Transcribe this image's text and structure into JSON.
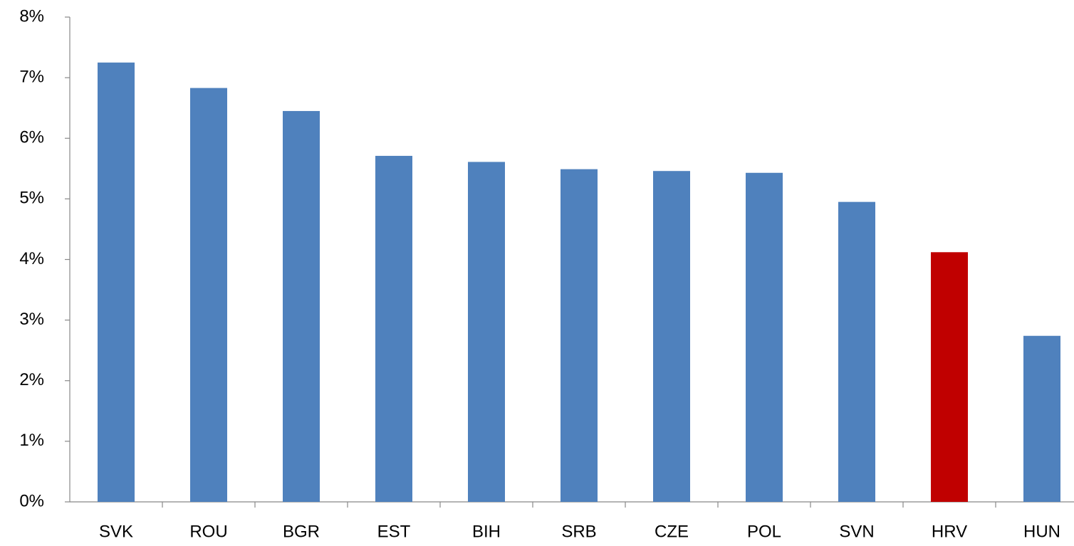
{
  "chart_data": {
    "type": "bar",
    "categories": [
      "SVK",
      "ROU",
      "BGR",
      "EST",
      "BIH",
      "SRB",
      "CZE",
      "POL",
      "SVN",
      "HRV",
      "HUN"
    ],
    "values": [
      7.25,
      6.83,
      6.45,
      5.71,
      5.61,
      5.49,
      5.46,
      5.43,
      4.95,
      4.12,
      2.74
    ],
    "colors": [
      "#4f81bd",
      "#4f81bd",
      "#4f81bd",
      "#4f81bd",
      "#4f81bd",
      "#4f81bd",
      "#4f81bd",
      "#4f81bd",
      "#4f81bd",
      "#c00000",
      "#4f81bd"
    ],
    "ylim": [
      0,
      8
    ],
    "yticks": [
      {
        "value": 0,
        "label": "0%"
      },
      {
        "value": 1,
        "label": "1%"
      },
      {
        "value": 2,
        "label": "2%"
      },
      {
        "value": 3,
        "label": "3%"
      },
      {
        "value": 4,
        "label": "4%"
      },
      {
        "value": 5,
        "label": "5%"
      },
      {
        "value": 6,
        "label": "6%"
      },
      {
        "value": 7,
        "label": "7%"
      },
      {
        "value": 8,
        "label": "8%"
      }
    ],
    "grid": false
  }
}
